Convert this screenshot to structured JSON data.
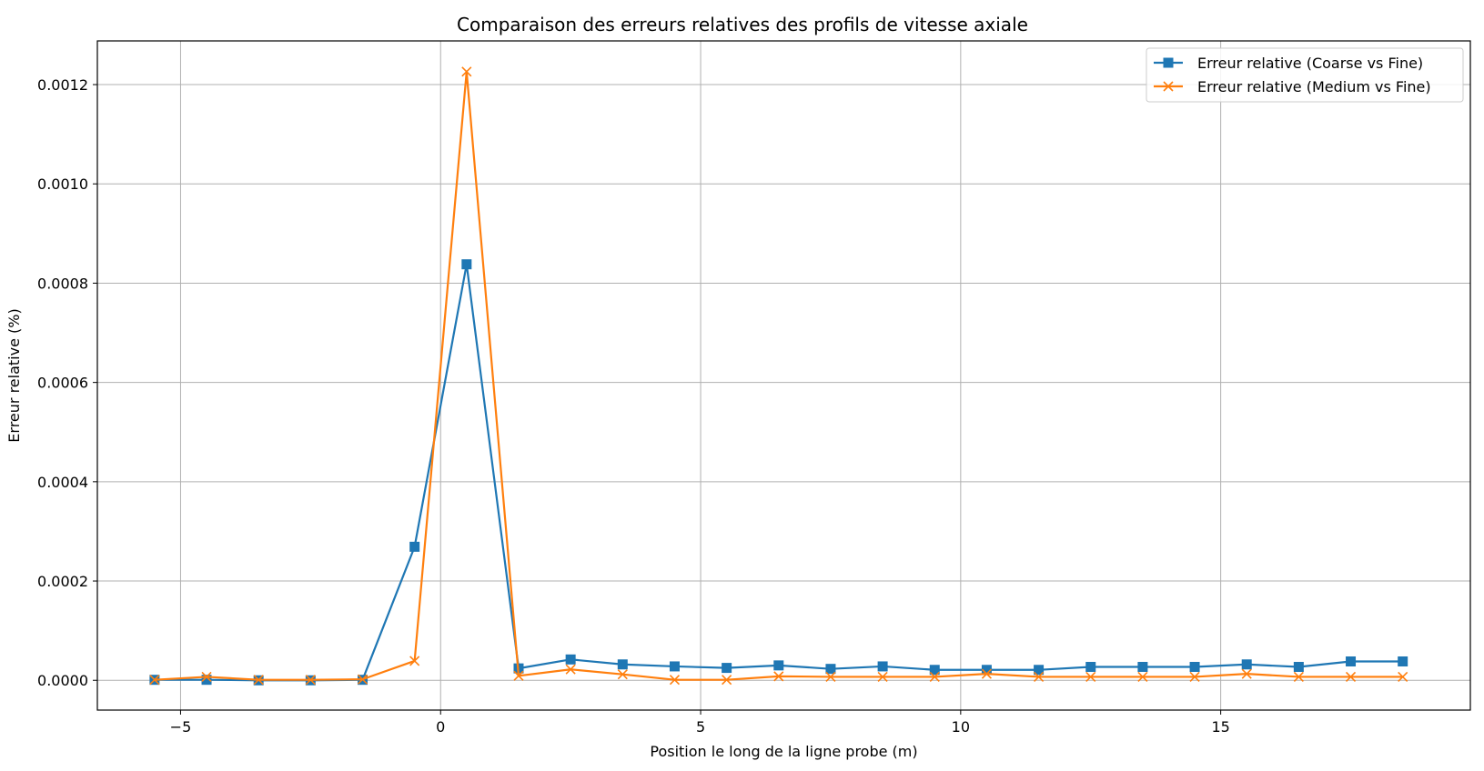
{
  "chart_data": {
    "type": "line",
    "title": "Comparaison des erreurs relatives des profils de vitesse axiale",
    "xlabel": "Position le long de la ligne probe (m)",
    "ylabel": "Erreur relative (%)",
    "xlim": [
      -6.6,
      19.8
    ],
    "ylim": [
      -6e-05,
      0.001288
    ],
    "xticks": [
      -5,
      0,
      5,
      10,
      15
    ],
    "xtick_labels": [
      "−5",
      "0",
      "5",
      "10",
      "15"
    ],
    "yticks": [
      0.0,
      0.0002,
      0.0004,
      0.0006,
      0.0008,
      0.001,
      0.0012
    ],
    "ytick_labels": [
      "0.0000",
      "0.0002",
      "0.0004",
      "0.0006",
      "0.0008",
      "0.0010",
      "0.0012"
    ],
    "grid": true,
    "legend_position": "top-right",
    "x": [
      -5.5,
      -4.5,
      -3.5,
      -2.5,
      -1.5,
      -0.5,
      0.5,
      1.5,
      2.5,
      3.5,
      4.5,
      5.5,
      6.5,
      7.5,
      8.5,
      9.5,
      10.5,
      11.5,
      12.5,
      13.5,
      14.5,
      15.5,
      16.5,
      17.5,
      18.5
    ],
    "series": [
      {
        "name": "Erreur relative (Coarse vs Fine)",
        "color": "#1f77b4",
        "marker": "square",
        "values": [
          1e-06,
          1e-06,
          0.0,
          0.0,
          1e-06,
          0.000269,
          0.000838,
          2.4e-05,
          4.2e-05,
          3.2e-05,
          2.8e-05,
          2.5e-05,
          3e-05,
          2.3e-05,
          2.8e-05,
          2.1e-05,
          2.1e-05,
          2.1e-05,
          2.7e-05,
          2.7e-05,
          2.7e-05,
          3.2e-05,
          2.7e-05,
          3.8e-05,
          3.8e-05
        ]
      },
      {
        "name": "Erreur relative (Medium vs Fine)",
        "color": "#ff7f0e",
        "marker": "x",
        "values": [
          1e-06,
          7e-06,
          1e-06,
          1e-06,
          2e-06,
          3.9e-05,
          0.001226,
          9e-06,
          2.2e-05,
          1.2e-05,
          1e-06,
          1e-06,
          8e-06,
          7e-06,
          7e-06,
          7e-06,
          1.3e-05,
          7e-06,
          7e-06,
          7e-06,
          7e-06,
          1.3e-05,
          7e-06,
          7e-06,
          7e-06
        ]
      }
    ]
  }
}
